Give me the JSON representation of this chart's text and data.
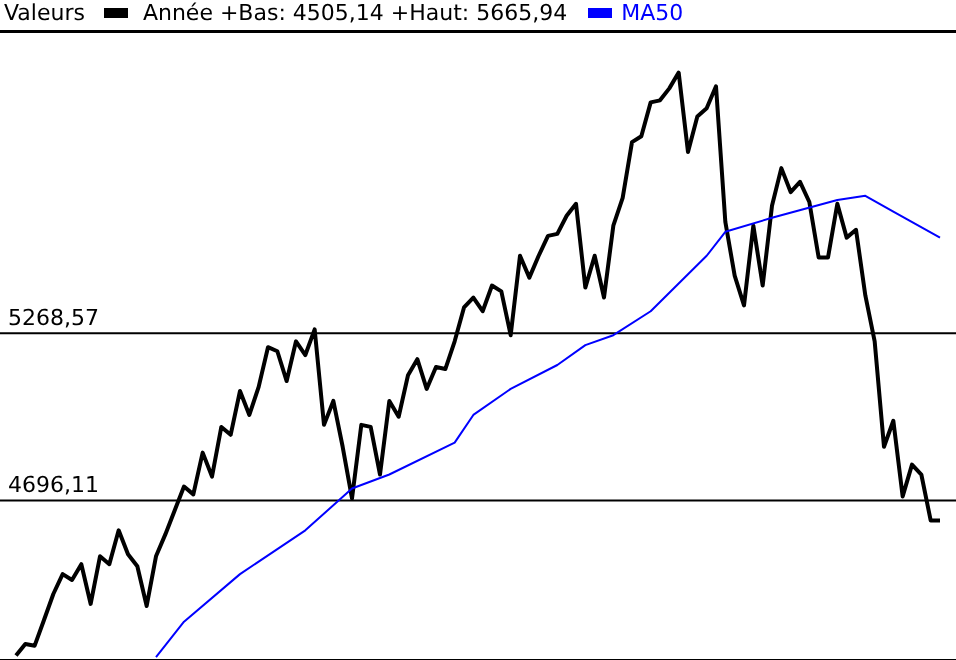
{
  "chart_data": {
    "type": "line",
    "legend_title": "Valeurs",
    "annotations": [
      "Année +Bas: 4505,14 +Haut: 5665,94"
    ],
    "categories": [
      null,
      null,
      null,
      null,
      null,
      null,
      null,
      null,
      null,
      null,
      null,
      null,
      null,
      null,
      null,
      null,
      null,
      null,
      null,
      null,
      null,
      null,
      null,
      null,
      null,
      null,
      null,
      null,
      null,
      null,
      null,
      null,
      null,
      null,
      null,
      null,
      null,
      null,
      null,
      null,
      null,
      null,
      null,
      null,
      null,
      null,
      null,
      null,
      null,
      null,
      null,
      null,
      null,
      null,
      null,
      null,
      null,
      null,
      null,
      null,
      null,
      null,
      null,
      null,
      null,
      null,
      null,
      null,
      null,
      null,
      null,
      null,
      null,
      null,
      null,
      null,
      null,
      null,
      null,
      null,
      null,
      null,
      null,
      null,
      null,
      null,
      null,
      null,
      null,
      null,
      null,
      null,
      null,
      null,
      null,
      null,
      null,
      null,
      null,
      null
    ],
    "series": [
      {
        "color": "#000000",
        "values": [
          4165,
          4205,
          4199,
          4287,
          4376,
          4444,
          4424,
          4478,
          4342,
          4505,
          4478,
          4594,
          4512,
          4471,
          4335,
          4505,
          4580,
          4662,
          4744,
          4717,
          4860,
          4778,
          4948,
          4921,
          5071,
          4989,
          5085,
          5221,
          5207,
          5105,
          5241,
          5194,
          5282,
          4955,
          5037,
          4880,
          4703,
          4955,
          4948,
          4785,
          5037,
          4983,
          5125,
          5180,
          5078,
          5153,
          5146,
          5241,
          5357,
          5391,
          5344,
          5432,
          5412,
          5262,
          5534,
          5459,
          5534,
          5602,
          5609,
          5671,
          5712,
          5425,
          5534,
          5391,
          5637,
          5732,
          5923,
          5943,
          6059,
          6066,
          6107,
          6161,
          5889,
          6011,
          6039,
          6114,
          5650,
          5466,
          5364,
          5637,
          5432,
          5705,
          5834,
          5752,
          5787,
          5718,
          5528,
          5528,
          5712,
          5596,
          5623,
          5398,
          5241,
          4880,
          4969,
          4710,
          4819,
          4785,
          4628,
          4628
        ]
      },
      {
        "name": "MA50",
        "color": "#0000ff",
        "values": [
          null,
          null,
          null,
          null,
          null,
          null,
          null,
          null,
          null,
          null,
          null,
          null,
          null,
          null,
          null,
          4160,
          null,
          null,
          4281,
          null,
          null,
          null,
          null,
          null,
          4444,
          null,
          null,
          null,
          null,
          null,
          null,
          4594,
          null,
          null,
          null,
          null,
          4737,
          null,
          null,
          null,
          4785,
          null,
          null,
          null,
          null,
          null,
          null,
          4894,
          null,
          4989,
          null,
          null,
          null,
          5078,
          null,
          null,
          null,
          null,
          5160,
          null,
          null,
          5228,
          null,
          null,
          5262,
          null,
          null,
          null,
          5344,
          null,
          null,
          null,
          null,
          null,
          5534,
          null,
          5616,
          null,
          null,
          null,
          null,
          5664,
          null,
          null,
          null,
          null,
          null,
          null,
          5725,
          null,
          null,
          5739,
          null,
          null,
          5685,
          null,
          null,
          null,
          null,
          5596
        ]
      }
    ],
    "ylim": [
      4150,
      6300
    ],
    "yticks": [
      {
        "value": 4696.11,
        "label": "4696,11"
      },
      {
        "value": 5268.57,
        "label": "5268,57"
      }
    ],
    "grid": "y",
    "legend": "top",
    "marker": "none",
    "line_style": "solid"
  }
}
